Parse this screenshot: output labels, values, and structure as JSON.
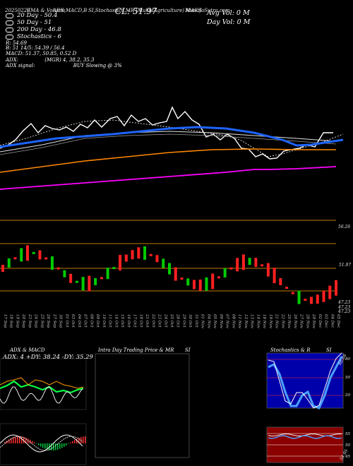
{
  "header": {
    "date": "20250220",
    "ema": "EMA & Volume",
    "adx": "ADX,MACD,B",
    "stoch": "SI,Stochastics,MR",
    "symbol": "(MuktaAgriculture) MAKS",
    "source": "MunafaSutra.com",
    "cl_label": "CL: 51.97"
  },
  "legend": [
    {
      "label": "20 Day - 50.4",
      "color": "#ffffff"
    },
    {
      "label": "50 Day - 51",
      "color": "#ffffff"
    },
    {
      "label": "200 Day - 46.8",
      "color": "#ffffff"
    },
    {
      "label": "Stochastics - 6",
      "color": "#ffffff"
    }
  ],
  "info_lines": [
    "R: 54.69",
    "B: 51 14/5: 54.39 / 56.4",
    "MACD: 51.37, 50.85, 0.52 D"
  ],
  "adx_line": {
    "label": "ADX:",
    "value": "(MGR) 4, 38.2, 35.3"
  },
  "signal_line": {
    "label": "ADX signal:",
    "value": "BUY Slowing @ 3%"
  },
  "avg_vol": "Avg Vol: 0  M",
  "day_vol": "Day Vol: 0  M",
  "price_labels": [
    "56.26",
    "51.97",
    "47.23",
    "47.23",
    "47.23"
  ],
  "dates": [
    "17 Sep",
    "18 Sep",
    "19 Sep",
    "20 Sep",
    "23 Sep",
    "24 Sep",
    "25 Sep",
    "26 Sep",
    "27 Sep",
    "30 Sep",
    "01 Oct",
    "03 Oct",
    "04 Oct",
    "07 Oct",
    "08 Oct",
    "09 Oct",
    "10 Oct",
    "11 Oct",
    "14 Oct",
    "15 Oct",
    "16 Oct",
    "17 Oct",
    "18 Oct",
    "21 Oct",
    "22 Oct",
    "23 Oct",
    "24 Oct",
    "25 Oct",
    "28 Oct",
    "29 Oct",
    "30 Oct",
    "31 Oct",
    "01 Nov",
    "04 Nov",
    "05 Nov",
    "06 Nov",
    "07 Nov",
    "08 Nov",
    "11 Nov",
    "12 Nov",
    "13 Nov",
    "14 Nov",
    "18 Nov",
    "19 Nov",
    "21 Nov",
    "22 Nov",
    "25 Nov",
    "26 Nov",
    "27 Nov",
    "28 Nov",
    "29 Nov",
    "02 Dec",
    "03 Dec",
    "04 Dec",
    "05 Dec"
  ],
  "panels": {
    "adx_title": "ADX & MACD",
    "adx_values": "ADX: 4  +DY: 38.24  -DY: 35.29",
    "intraday_title": "Intra Day Trading Price & MR",
    "intraday_si": "SI",
    "stoch_title": "Stochastics & R",
    "stoch_si": "SI",
    "stoch_ticks": [
      "80",
      "50",
      "20"
    ],
    "mr_ticks": [
      "55",
      "50",
      "45"
    ],
    "stoch_value": "86.66",
    "mr_value": "54.95"
  },
  "colors": {
    "ema20": "#ffffff",
    "ema50": "#1e64ff",
    "ema100": "#e0e0e0",
    "ema200": "#ff8800",
    "magenta": "#ff00ff",
    "up": "#00cc00",
    "down": "#ff2020",
    "line": "#ffa500"
  },
  "chart_data": {
    "type": "line",
    "title": "",
    "series": [
      {
        "name": "20 Day - 50.4",
        "values": [
          41,
          42,
          43,
          46,
          47,
          48,
          49,
          50,
          50,
          51,
          51,
          51,
          51,
          52,
          52,
          52,
          52,
          52,
          53,
          53,
          53,
          53,
          53,
          53,
          52,
          52,
          52,
          52,
          51,
          51,
          51,
          51,
          51,
          51,
          51,
          51,
          51,
          51,
          51,
          51,
          51,
          51,
          50,
          50,
          50,
          50,
          50,
          50,
          50,
          50,
          50,
          50,
          50,
          50,
          50
        ]
      },
      {
        "name": "50 Day - 51",
        "values": [
          43,
          43,
          44,
          44,
          45,
          45,
          46,
          46,
          47,
          47,
          47,
          48,
          48,
          48,
          48,
          49,
          49,
          49,
          49,
          50,
          50,
          50,
          50,
          50,
          50,
          50,
          51,
          51,
          51,
          51,
          51,
          51,
          51,
          51,
          51,
          51,
          51,
          51,
          51,
          51,
          51,
          51,
          51,
          51,
          51,
          51,
          51,
          51,
          51,
          51,
          51,
          51,
          51,
          51,
          51
        ]
      },
      {
        "name": "200 Day - 46.8",
        "values": [
          42,
          42,
          42,
          42,
          43,
          43,
          43,
          43,
          43,
          43,
          44,
          44,
          44,
          44,
          44,
          44,
          45,
          45,
          45,
          45,
          45,
          45,
          45,
          45,
          46,
          46,
          46,
          46,
          46,
          46,
          46,
          46,
          46,
          46,
          46,
          46,
          46,
          46,
          46,
          46,
          46,
          46,
          46,
          46,
          46,
          46,
          46,
          46,
          46,
          47,
          47,
          47,
          47,
          47,
          47
        ]
      }
    ],
    "candles": [
      [
        0,
        0,
        1
      ],
      [
        1,
        1,
        1
      ],
      [
        2,
        0,
        0
      ],
      [
        3,
        1,
        1
      ],
      [
        4,
        0,
        1
      ],
      [
        5,
        1,
        0
      ],
      [
        6,
        0,
        1
      ],
      [
        7,
        0,
        0
      ],
      [
        8,
        1,
        1
      ],
      [
        9,
        0,
        0
      ],
      [
        10,
        1,
        1
      ],
      [
        11,
        0,
        1
      ],
      [
        12,
        1,
        0
      ],
      [
        13,
        1,
        1
      ],
      [
        14,
        0,
        1
      ],
      [
        15,
        1,
        1
      ],
      [
        16,
        0,
        0
      ],
      [
        17,
        1,
        1
      ],
      [
        18,
        1,
        0
      ],
      [
        19,
        0,
        1
      ],
      [
        20,
        0,
        1
      ],
      [
        21,
        0,
        1
      ],
      [
        22,
        0,
        1
      ],
      [
        23,
        1,
        1
      ],
      [
        24,
        0,
        0
      ],
      [
        25,
        0,
        1
      ],
      [
        26,
        1,
        1
      ],
      [
        27,
        1,
        1
      ],
      [
        28,
        0,
        1
      ],
      [
        29,
        0,
        0
      ],
      [
        30,
        1,
        1
      ],
      [
        31,
        0,
        1
      ],
      [
        32,
        0,
        1
      ],
      [
        33,
        1,
        1
      ],
      [
        34,
        0,
        1
      ],
      [
        35,
        0,
        0
      ],
      [
        36,
        1,
        1
      ],
      [
        37,
        0,
        0
      ],
      [
        38,
        0,
        1
      ],
      [
        39,
        0,
        1
      ],
      [
        40,
        1,
        1
      ],
      [
        41,
        0,
        1
      ],
      [
        42,
        0,
        0
      ],
      [
        43,
        0,
        1
      ],
      [
        44,
        0,
        1
      ],
      [
        45,
        0,
        1
      ],
      [
        46,
        0,
        0
      ],
      [
        47,
        0,
        0
      ],
      [
        48,
        1,
        1
      ],
      [
        49,
        0,
        0
      ],
      [
        50,
        0,
        1
      ],
      [
        51,
        0,
        1
      ],
      [
        52,
        0,
        1
      ],
      [
        53,
        0,
        1
      ],
      [
        54,
        0,
        1
      ]
    ],
    "ylim": [
      40,
      60
    ]
  }
}
